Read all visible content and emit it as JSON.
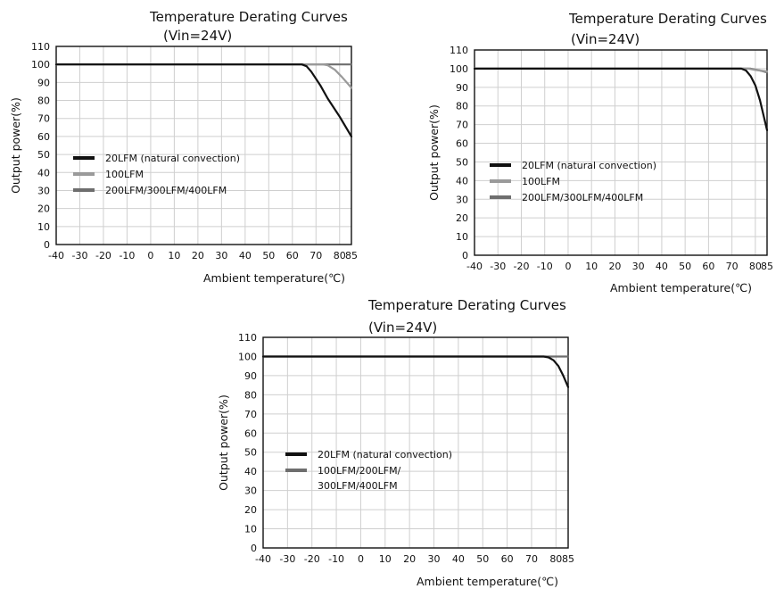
{
  "chart_data": [
    {
      "type": "line",
      "title": "Temperature Derating Curves",
      "subtitle": "(Vin=24V)",
      "xlabel": "Ambient temperature(℃)",
      "ylabel": "Output power(%)",
      "xlim": [
        -40,
        85
      ],
      "ylim": [
        0,
        110
      ],
      "x_ticks": [
        "-40",
        "-30",
        "-20",
        "-10",
        "0",
        "10",
        "20",
        "30",
        "40",
        "50",
        "60",
        "70",
        "80",
        "85"
      ],
      "y_ticks": [
        "0",
        "10",
        "20",
        "30",
        "40",
        "50",
        "60",
        "70",
        "80",
        "90",
        "100",
        "110"
      ],
      "grid": true,
      "legend_position": "left-middle",
      "series": [
        {
          "name": "20LFM (natural convection)",
          "color": "#111111",
          "points": [
            [
              -40,
              100
            ],
            [
              64,
              100
            ],
            [
              66,
              99
            ],
            [
              68,
              96
            ],
            [
              70,
              92
            ],
            [
              72,
              88
            ],
            [
              75,
              81
            ],
            [
              80,
              71
            ],
            [
              85,
              60
            ]
          ]
        },
        {
          "name": "100LFM",
          "color": "#9a9a9a",
          "points": [
            [
              -40,
              100
            ],
            [
              73,
              100
            ],
            [
              75,
              99.5
            ],
            [
              78,
              97
            ],
            [
              81,
              93
            ],
            [
              85,
              87
            ]
          ]
        },
        {
          "name": "200LFM/300LFM/400LFM",
          "color": "#6e6e6e",
          "points": [
            [
              -40,
              100
            ],
            [
              85,
              100
            ]
          ]
        }
      ]
    },
    {
      "type": "line",
      "title": "Temperature Derating Curves",
      "subtitle": "(Vin=24V)",
      "xlabel": "Ambient temperature(℃)",
      "ylabel": "Output power(%)",
      "xlim": [
        -40,
        85
      ],
      "ylim": [
        0,
        110
      ],
      "x_ticks": [
        "-40",
        "-30",
        "-20",
        "-10",
        "0",
        "10",
        "20",
        "30",
        "40",
        "50",
        "60",
        "70",
        "80",
        "85"
      ],
      "y_ticks": [
        "0",
        "10",
        "20",
        "30",
        "40",
        "50",
        "60",
        "70",
        "80",
        "90",
        "100",
        "110"
      ],
      "grid": true,
      "legend_position": "left-middle",
      "series": [
        {
          "name": "20LFM (natural convection)",
          "color": "#111111",
          "points": [
            [
              -40,
              100
            ],
            [
              74,
              100
            ],
            [
              76,
              99
            ],
            [
              78,
              96
            ],
            [
              80,
              91
            ],
            [
              82,
              83
            ],
            [
              85,
              67
            ]
          ]
        },
        {
          "name": "100LFM",
          "color": "#9a9a9a",
          "points": [
            [
              -40,
              100
            ],
            [
              77,
              100
            ],
            [
              80,
              99.3
            ],
            [
              85,
              98.5
            ]
          ]
        },
        {
          "name": "200LFM/300LFM/400LFM",
          "color": "#6e6e6e",
          "points": [
            [
              -40,
              100
            ],
            [
              78,
              100
            ],
            [
              82,
              99
            ],
            [
              85,
              98
            ]
          ]
        }
      ]
    },
    {
      "type": "line",
      "title": "Temperature Derating Curves",
      "subtitle": "(Vin=24V)",
      "xlabel": "Ambient temperature(℃)",
      "ylabel": "Output power(%)",
      "xlim": [
        -40,
        85
      ],
      "ylim": [
        0,
        110
      ],
      "x_ticks": [
        "-40",
        "-30",
        "-20",
        "-10",
        "0",
        "10",
        "20",
        "30",
        "40",
        "50",
        "60",
        "70",
        "80",
        "85"
      ],
      "y_ticks": [
        "0",
        "10",
        "20",
        "30",
        "40",
        "50",
        "60",
        "70",
        "80",
        "90",
        "100",
        "110"
      ],
      "grid": true,
      "legend_position": "left-middle",
      "series": [
        {
          "name": "20LFM (natural convection)",
          "color": "#111111",
          "points": [
            [
              -40,
              100
            ],
            [
              75,
              100
            ],
            [
              77,
              99.5
            ],
            [
              79,
              98
            ],
            [
              81,
              95
            ],
            [
              83,
              90
            ],
            [
              85,
              84
            ]
          ]
        },
        {
          "name": "100LFM/200LFM/ 300LFM/400LFM",
          "name_lines": [
            "100LFM/200LFM/",
            "300LFM/400LFM"
          ],
          "color": "#6e6e6e",
          "points": [
            [
              -40,
              100
            ],
            [
              85,
              100
            ]
          ]
        }
      ]
    }
  ]
}
